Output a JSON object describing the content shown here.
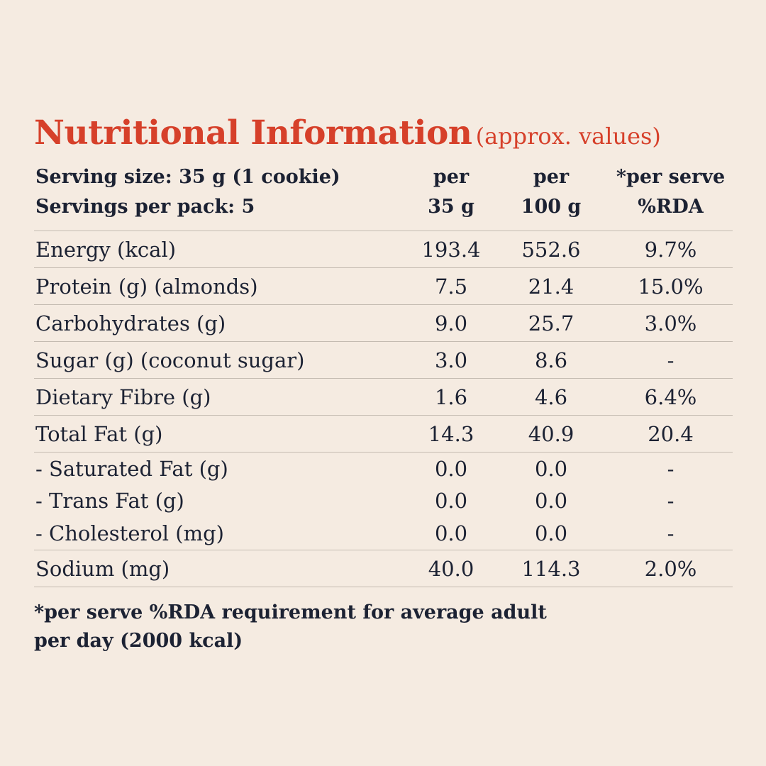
{
  "title": {
    "main": "Nutritional Information",
    "sub": "(approx. values)"
  },
  "header": {
    "serving_size": "Serving size: 35 g (1 cookie)",
    "servings_per_pack": "Servings per pack: 5",
    "col1_line1": "per",
    "col1_line2": "35 g",
    "col2_line1": "per",
    "col2_line2": "100 g",
    "col3_line1": "*per serve",
    "col3_line2": "%RDA"
  },
  "rows": [
    {
      "label": "Energy (kcal)",
      "per_serving": "193.4",
      "per_100g": "552.6",
      "rda": "9.7%"
    },
    {
      "label": "Protein (g) (almonds)",
      "per_serving": "7.5",
      "per_100g": "21.4",
      "rda": "15.0%"
    },
    {
      "label": "Carbohydrates (g)",
      "per_serving": "9.0",
      "per_100g": "25.7",
      "rda": "3.0%"
    },
    {
      "label": "Sugar (g) (coconut sugar)",
      "per_serving": "3.0",
      "per_100g": "8.6",
      "rda": "-"
    },
    {
      "label": "Dietary Fibre (g)",
      "per_serving": "1.6",
      "per_100g": "4.6",
      "rda": "6.4%"
    },
    {
      "label": "Total Fat (g)",
      "per_serving": "14.3",
      "per_100g": "40.9",
      "rda": "20.4"
    },
    {
      "label": "- Saturated Fat (g)",
      "per_serving": "0.0",
      "per_100g": "0.0",
      "rda": "-"
    },
    {
      "label": "- Trans Fat (g)",
      "per_serving": "0.0",
      "per_100g": "0.0",
      "rda": "-"
    },
    {
      "label": "- Cholesterol (mg)",
      "per_serving": "0.0",
      "per_100g": "0.0",
      "rda": "-"
    },
    {
      "label": "Sodium (mg)",
      "per_serving": "40.0",
      "per_100g": "114.3",
      "rda": "2.0%"
    }
  ],
  "footnote": {
    "line1": "*per serve %RDA requirement for average adult",
    "line2": "per day (2000 kcal)"
  },
  "colors": {
    "background": "#f5ebe1",
    "accent": "#d6402a",
    "text": "#1c2233",
    "rule": "#c4bbb1"
  }
}
